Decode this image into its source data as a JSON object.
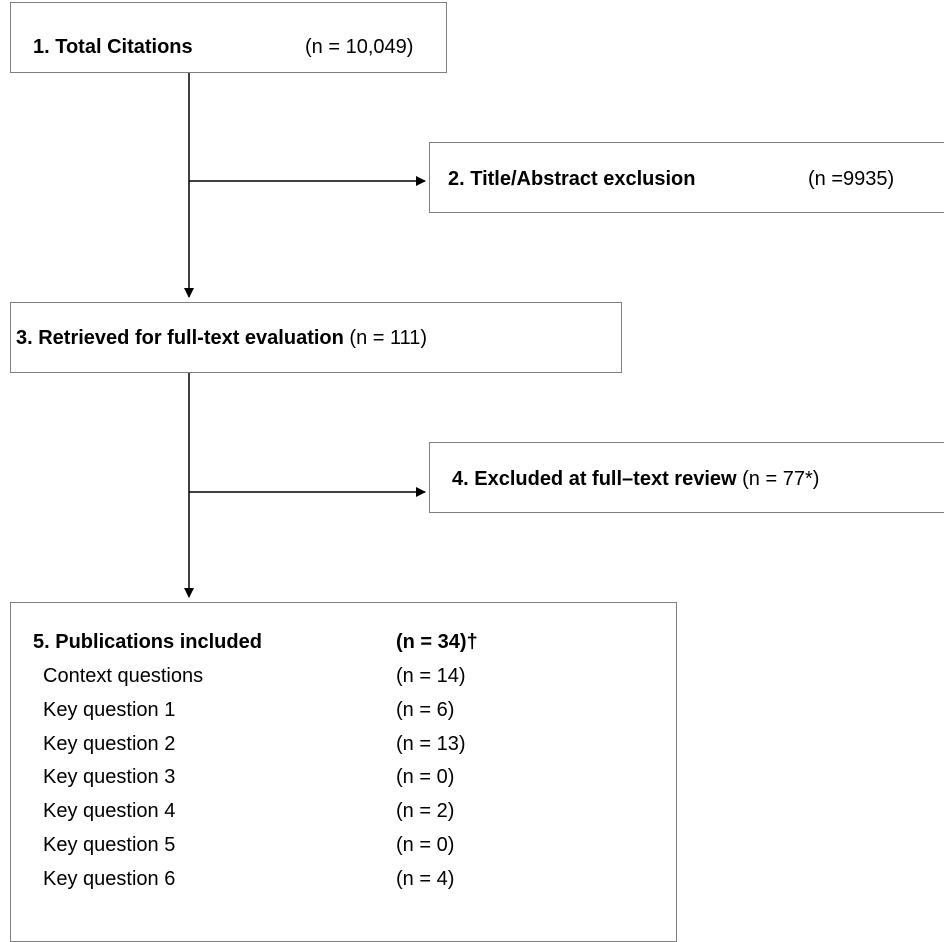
{
  "nodes": [
    {
      "label": "1. Total Citations",
      "count": "(n = 10,049)"
    },
    {
      "label": "2.  Title/Abstract exclusion",
      "count": "(n =9935)"
    },
    {
      "label": "3. Retrieved for full-text evaluation",
      "count": "(n = 111)"
    },
    {
      "label": "4. Excluded at full–text review",
      "count": "(n = 77*)"
    },
    {
      "label": "5.  Publications included",
      "count": "(n = 34)†",
      "rows": [
        {
          "label": "Context questions",
          "count": "(n = 14)"
        },
        {
          "label": "Key question 1",
          "count": "(n = 6)"
        },
        {
          "label": "Key question 2",
          "count": "(n = 13)"
        },
        {
          "label": "Key question 3",
          "count": "(n = 0)"
        },
        {
          "label": "Key question 4",
          "count": "(n = 2)"
        },
        {
          "label": "Key question 5",
          "count": "(n = 0)"
        },
        {
          "label": "Key question 6",
          "count": "(n = 4)"
        }
      ]
    }
  ]
}
